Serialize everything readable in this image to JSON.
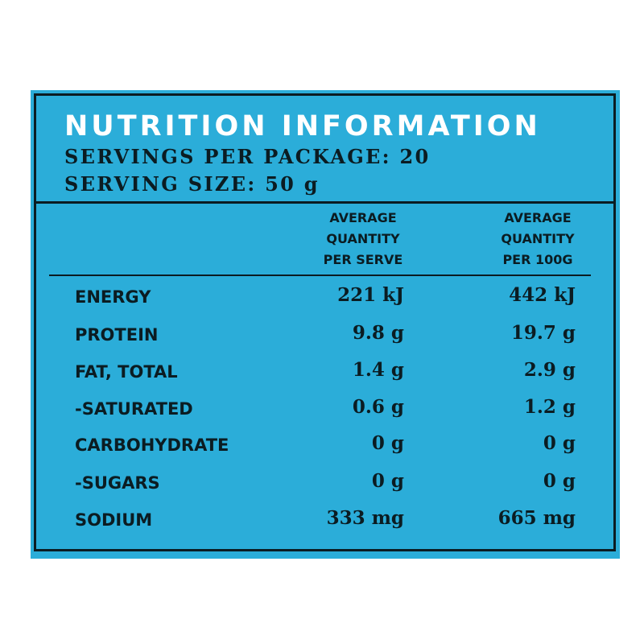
{
  "panel": {
    "title": "NUTRITION INFORMATION",
    "servings_per_package": "SERVINGS PER PACKAGE: 20",
    "serving_size": "SERVING SIZE: 50 g",
    "background_color": "#2badd9",
    "text_color": "#0b1c22"
  },
  "columns": {
    "per_serve": [
      "AVERAGE",
      "QUANTITY",
      "PER SERVE"
    ],
    "per_100g": [
      "AVERAGE",
      "QUANTITY",
      "PER 100G"
    ]
  },
  "rows": [
    {
      "label": "ENERGY",
      "per_serve": "221 kJ",
      "per_100g": "442 kJ"
    },
    {
      "label": "PROTEIN",
      "per_serve": "9.8 g",
      "per_100g": "19.7 g"
    },
    {
      "label": "FAT, TOTAL",
      "per_serve": "1.4 g",
      "per_100g": "2.9 g"
    },
    {
      "label": "-SATURATED",
      "per_serve": "0.6 g",
      "per_100g": "1.2 g"
    },
    {
      "label": "CARBOHYDRATE",
      "per_serve": "0 g",
      "per_100g": "0 g"
    },
    {
      "label": "-SUGARS",
      "per_serve": "0 g",
      "per_100g": "0 g"
    },
    {
      "label": "SODIUM",
      "per_serve": "333 mg",
      "per_100g": "665 mg"
    }
  ]
}
